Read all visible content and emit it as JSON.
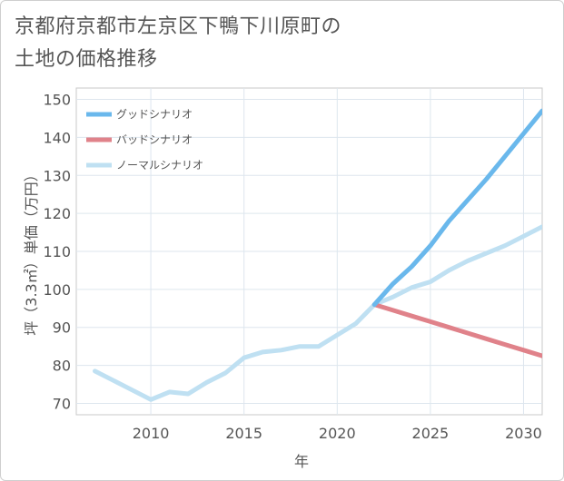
{
  "title_line1": "京都府京都市左京区下鴨下川原町の",
  "title_line2": "土地の価格推移",
  "chart_data": {
    "type": "line",
    "title": "京都府京都市左京区下鴨下川原町の土地の価格推移",
    "xlabel": "年",
    "ylabel": "坪（3.3㎡）単価（万円）",
    "xlim": [
      2006,
      2031
    ],
    "ylim": [
      67,
      153
    ],
    "x_ticks": [
      2010,
      2015,
      2020,
      2025,
      2030
    ],
    "y_ticks": [
      70,
      80,
      90,
      100,
      110,
      120,
      130,
      140,
      150
    ],
    "grid": true,
    "legend_position": "top-left",
    "series": [
      {
        "name": "グッドシナリオ",
        "color": "#6ab8ec",
        "x": [
          2022,
          2023,
          2024,
          2025,
          2026,
          2027,
          2028,
          2029,
          2030,
          2031
        ],
        "values": [
          96.0,
          101.5,
          106.0,
          111.5,
          118.0,
          123.5,
          129.0,
          135.0,
          141.0,
          147.0
        ]
      },
      {
        "name": "バッドシナリオ",
        "color": "#e0828a",
        "x": [
          2022,
          2023,
          2024,
          2025,
          2026,
          2027,
          2028,
          2029,
          2030,
          2031
        ],
        "values": [
          96.0,
          94.5,
          93.0,
          91.5,
          90.0,
          88.5,
          87.0,
          85.5,
          84.0,
          82.5
        ]
      },
      {
        "name": "ノーマルシナリオ",
        "color": "#bfe0f2",
        "x": [
          2007,
          2008,
          2009,
          2010,
          2011,
          2012,
          2013,
          2014,
          2015,
          2016,
          2017,
          2018,
          2019,
          2020,
          2021,
          2022,
          2023,
          2024,
          2025,
          2026,
          2027,
          2028,
          2029,
          2030,
          2031
        ],
        "values": [
          78.5,
          76.0,
          73.5,
          71.0,
          73.0,
          72.5,
          75.5,
          78.0,
          82.0,
          83.5,
          84.0,
          85.0,
          85.0,
          88.0,
          91.0,
          96.0,
          98.0,
          100.5,
          102.0,
          105.0,
          107.5,
          109.5,
          111.5,
          114.0,
          116.5
        ]
      }
    ]
  }
}
